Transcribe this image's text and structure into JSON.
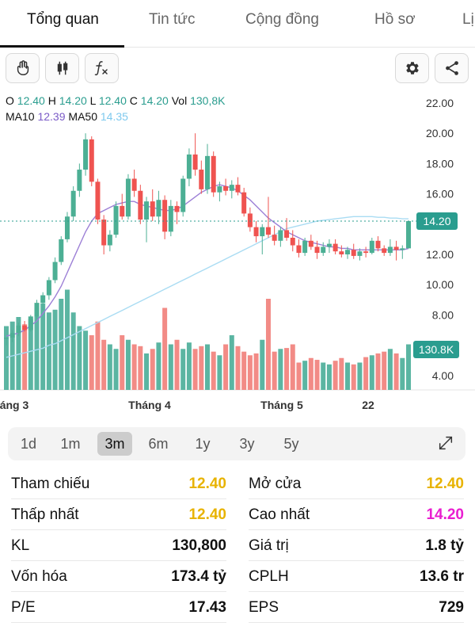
{
  "tabs": [
    {
      "label": "Tổng quan",
      "active": true
    },
    {
      "label": "Tin tức",
      "active": false
    },
    {
      "label": "Cộng đồng",
      "active": false
    },
    {
      "label": "Hồ sơ",
      "active": false
    },
    {
      "label": "Lị",
      "active": false
    }
  ],
  "toolbar": {
    "left_icons": [
      "hand-icon",
      "candlestick-icon",
      "function-icon"
    ],
    "right_icons": [
      "gear-icon",
      "share-icon"
    ]
  },
  "ohlc": {
    "o_label": "O",
    "o": "12.40",
    "h_label": "H",
    "h": "14.20",
    "l_label": "L",
    "l": "12.40",
    "c_label": "C",
    "c": "14.20",
    "vol_label": "Vol",
    "vol": "130,8K"
  },
  "ma": {
    "ma10_label": "MA10",
    "ma10": "12.39",
    "ma50_label": "MA50",
    "ma50": "14.35"
  },
  "chart_data": {
    "type": "candlestick",
    "price_ticks": [
      "22.00",
      "20.00",
      "18.00",
      "16.00",
      "14.00",
      "12.00",
      "10.00",
      "8.00",
      "6.00",
      "4.00"
    ],
    "ylim": [
      4,
      22
    ],
    "current_price": "14.20",
    "current_volume": "130.8K",
    "x_labels": [
      "áng 3",
      "Tháng 4",
      "Tháng 5",
      "22"
    ],
    "colors": {
      "up": "#4caf94",
      "down": "#ef5350",
      "up_vol": "#5bb5a2",
      "down_vol": "#f28b86",
      "ma10": "#9c7fd6",
      "ma50": "#a9dcf3",
      "price_line": "#2a9d8f"
    },
    "candles": [
      [
        6.5,
        6.5,
        6.0,
        6.5
      ],
      [
        6.5,
        7.0,
        6.2,
        6.8
      ],
      [
        6.8,
        7.5,
        6.6,
        7.3
      ],
      [
        7.3,
        7.6,
        6.9,
        7.0
      ],
      [
        7.0,
        8.0,
        6.9,
        7.9
      ],
      [
        7.9,
        9.0,
        7.7,
        8.8
      ],
      [
        8.8,
        9.5,
        8.3,
        9.3
      ],
      [
        9.3,
        10.5,
        9.0,
        10.3
      ],
      [
        10.3,
        11.8,
        10.1,
        11.5
      ],
      [
        11.5,
        13.2,
        11.3,
        13.0
      ],
      [
        13.0,
        14.8,
        12.8,
        14.5
      ],
      [
        14.5,
        16.5,
        14.2,
        16.2
      ],
      [
        16.2,
        18.0,
        15.8,
        17.6
      ],
      [
        17.6,
        20.0,
        17.2,
        19.6
      ],
      [
        19.6,
        19.8,
        16.5,
        16.8
      ],
      [
        16.8,
        17.0,
        14.0,
        14.3
      ],
      [
        14.3,
        14.6,
        12.0,
        12.6
      ],
      [
        12.6,
        13.6,
        12.2,
        13.3
      ],
      [
        13.3,
        15.5,
        13.1,
        15.2
      ],
      [
        15.2,
        16.0,
        14.3,
        14.5
      ],
      [
        14.5,
        17.3,
        14.3,
        17.0
      ],
      [
        17.0,
        17.6,
        15.8,
        16.2
      ],
      [
        16.2,
        16.6,
        14.0,
        14.3
      ],
      [
        14.3,
        15.8,
        12.8,
        15.5
      ],
      [
        15.5,
        16.3,
        14.2,
        14.5
      ],
      [
        14.5,
        16.2,
        14.0,
        15.6
      ],
      [
        15.6,
        15.9,
        13.0,
        13.5
      ],
      [
        13.5,
        15.6,
        13.2,
        15.2
      ],
      [
        15.2,
        15.5,
        14.0,
        14.8
      ],
      [
        14.8,
        17.2,
        14.5,
        17.0
      ],
      [
        17.0,
        19.0,
        16.5,
        18.6
      ],
      [
        18.6,
        20.0,
        17.2,
        17.6
      ],
      [
        17.6,
        18.2,
        16.0,
        16.3
      ],
      [
        16.3,
        19.3,
        16.0,
        18.5
      ],
      [
        18.5,
        18.8,
        15.8,
        16.1
      ],
      [
        16.1,
        16.8,
        15.5,
        16.5
      ],
      [
        16.5,
        17.0,
        15.9,
        16.2
      ],
      [
        16.2,
        16.9,
        15.7,
        16.6
      ],
      [
        16.6,
        17.1,
        15.9,
        16.1
      ],
      [
        16.1,
        16.4,
        14.5,
        14.7
      ],
      [
        14.7,
        15.1,
        13.5,
        13.8
      ],
      [
        13.8,
        14.2,
        12.8,
        13.2
      ],
      [
        13.2,
        14.0,
        12.0,
        13.8
      ],
      [
        13.8,
        15.8,
        13.1,
        13.3
      ],
      [
        13.3,
        13.9,
        12.6,
        12.9
      ],
      [
        12.9,
        13.8,
        12.5,
        13.6
      ],
      [
        13.6,
        14.4,
        12.9,
        13.1
      ],
      [
        13.1,
        13.6,
        12.2,
        12.6
      ],
      [
        12.6,
        13.0,
        11.8,
        12.1
      ],
      [
        12.1,
        13.1,
        11.9,
        12.9
      ],
      [
        12.9,
        13.3,
        12.3,
        12.5
      ],
      [
        12.5,
        12.9,
        11.7,
        12.1
      ],
      [
        12.1,
        12.8,
        11.9,
        12.5
      ],
      [
        12.5,
        13.0,
        12.1,
        12.7
      ],
      [
        12.7,
        13.0,
        12.0,
        12.2
      ],
      [
        12.2,
        12.6,
        11.8,
        12.0
      ],
      [
        12.0,
        12.5,
        11.7,
        12.3
      ],
      [
        12.3,
        12.7,
        11.7,
        11.9
      ],
      [
        11.9,
        12.4,
        11.6,
        12.2
      ],
      [
        12.2,
        12.5,
        11.8,
        12.1
      ],
      [
        12.1,
        13.1,
        12.0,
        12.9
      ],
      [
        12.9,
        13.2,
        12.2,
        12.4
      ],
      [
        12.4,
        12.6,
        11.9,
        12.1
      ],
      [
        12.1,
        13.0,
        11.9,
        12.5
      ],
      [
        12.5,
        12.9,
        11.6,
        12.3
      ],
      [
        12.3,
        12.6,
        11.7,
        12.4
      ],
      [
        12.4,
        14.2,
        12.4,
        14.2
      ]
    ],
    "volumes": [
      70,
      75,
      80,
      72,
      78,
      90,
      95,
      85,
      88,
      100,
      110,
      85,
      70,
      65,
      60,
      75,
      55,
      50,
      45,
      60,
      55,
      50,
      48,
      40,
      45,
      52,
      90,
      50,
      55,
      45,
      52,
      45,
      48,
      50,
      42,
      38,
      50,
      60,
      48,
      42,
      38,
      40,
      55,
      100,
      42,
      45,
      46,
      50,
      30,
      32,
      35,
      33,
      30,
      28,
      32,
      35,
      30,
      28,
      30,
      36,
      38,
      40,
      42,
      45,
      40,
      35,
      50
    ],
    "ma10": [
      6.6,
      6.7,
      6.8,
      7.0,
      7.3,
      7.6,
      8.1,
      8.6,
      9.2,
      9.9,
      10.8,
      11.7,
      12.6,
      13.5,
      14.2,
      14.7,
      14.9,
      15.1,
      15.3,
      15.4,
      15.5,
      15.5,
      15.3,
      15.2,
      15.1,
      15.0,
      14.9,
      14.9,
      15.0,
      15.2,
      15.5,
      15.8,
      16.1,
      16.3,
      16.5,
      16.6,
      16.5,
      16.4,
      16.2,
      15.9,
      15.6,
      15.2,
      14.8,
      14.4,
      14.1,
      13.8,
      13.5,
      13.3,
      13.1,
      12.9,
      12.8,
      12.7,
      12.6,
      12.5,
      12.5,
      12.4,
      12.4,
      12.3,
      12.3,
      12.3,
      12.3,
      12.3,
      12.3,
      12.3,
      12.3,
      12.3,
      12.39
    ],
    "ma50": [
      5.2,
      5.3,
      5.4,
      5.5,
      5.6,
      5.7,
      5.8,
      6.0,
      6.1,
      6.3,
      6.5,
      6.7,
      6.9,
      7.1,
      7.3,
      7.5,
      7.7,
      7.9,
      8.1,
      8.3,
      8.5,
      8.7,
      8.9,
      9.1,
      9.3,
      9.5,
      9.7,
      9.9,
      10.1,
      10.3,
      10.5,
      10.7,
      10.9,
      11.1,
      11.3,
      11.5,
      11.7,
      11.9,
      12.1,
      12.3,
      12.5,
      12.7,
      12.9,
      13.1,
      13.3,
      13.5,
      13.7,
      13.8,
      13.9,
      14.0,
      14.1,
      14.2,
      14.25,
      14.3,
      14.35,
      14.4,
      14.45,
      14.5,
      14.5,
      14.5,
      14.5,
      14.45,
      14.45,
      14.4,
      14.4,
      14.35,
      14.35
    ]
  },
  "periods": {
    "items": [
      "1d",
      "1m",
      "3m",
      "6m",
      "1y",
      "3y",
      "5y"
    ],
    "selected": "3m"
  },
  "stats": {
    "left": [
      {
        "label": "Tham chiếu",
        "value": "12.40",
        "color": "yellow"
      },
      {
        "label": "Thấp nhất",
        "value": "12.40",
        "color": "yellow"
      },
      {
        "label": "KL",
        "value": "130,800",
        "color": "black"
      },
      {
        "label": "Vốn hóa",
        "value": "173.4 tỷ",
        "color": "black"
      },
      {
        "label": "P/E",
        "value": "17.43",
        "color": "black"
      }
    ],
    "right": [
      {
        "label": "Mở cửa",
        "value": "12.40",
        "color": "yellow"
      },
      {
        "label": "Cao nhất",
        "value": "14.20",
        "color": "magenta"
      },
      {
        "label": "Giá trị",
        "value": "1.8 tỷ",
        "color": "black"
      },
      {
        "label": "CPLH",
        "value": "13.6 tr",
        "color": "black"
      },
      {
        "label": "EPS",
        "value": "729",
        "color": "black"
      }
    ]
  }
}
